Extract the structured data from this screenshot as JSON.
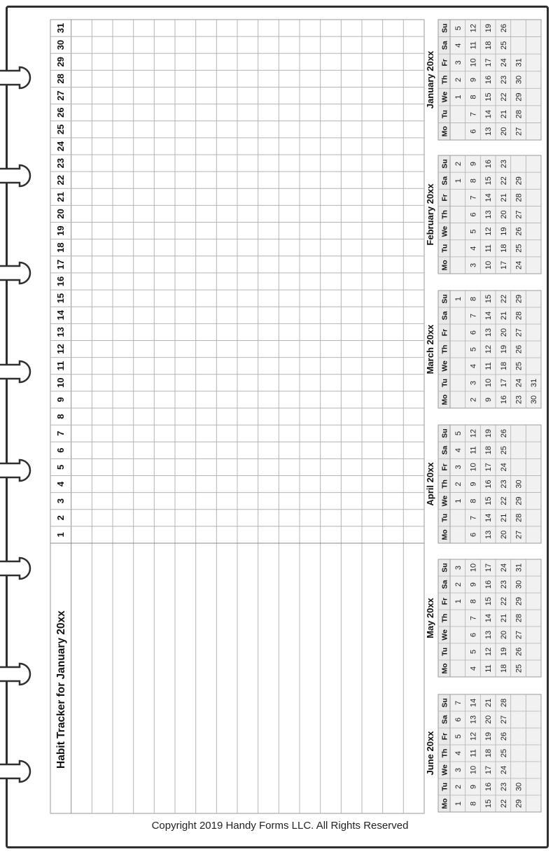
{
  "title": "Habit Tracker for January 20xx",
  "days": [
    "1",
    "2",
    "3",
    "4",
    "5",
    "6",
    "7",
    "8",
    "9",
    "10",
    "11",
    "12",
    "13",
    "14",
    "15",
    "16",
    "17",
    "18",
    "19",
    "20",
    "21",
    "22",
    "23",
    "24",
    "25",
    "26",
    "27",
    "28",
    "29",
    "30",
    "31"
  ],
  "copyright": "Copyright 2019 Handy Forms LLC. All Rights Reserved",
  "weekday_headers": [
    "Mo",
    "Tu",
    "We",
    "Th",
    "Fr",
    "Sa",
    "Su"
  ],
  "months": [
    {
      "title": "January 20xx",
      "weeks": [
        [
          "",
          "",
          "1",
          "2",
          "3",
          "4",
          "5"
        ],
        [
          "6",
          "7",
          "8",
          "9",
          "10",
          "11",
          "12"
        ],
        [
          "13",
          "14",
          "15",
          "16",
          "17",
          "18",
          "19"
        ],
        [
          "20",
          "21",
          "22",
          "23",
          "24",
          "25",
          "26"
        ],
        [
          "27",
          "28",
          "29",
          "30",
          "31",
          "",
          ""
        ]
      ]
    },
    {
      "title": "February 20xx",
      "weeks": [
        [
          "",
          "",
          "",
          "",
          "",
          "1",
          "2"
        ],
        [
          "3",
          "4",
          "5",
          "6",
          "7",
          "8",
          "9"
        ],
        [
          "10",
          "11",
          "12",
          "13",
          "14",
          "15",
          "16"
        ],
        [
          "17",
          "18",
          "19",
          "20",
          "21",
          "22",
          "23"
        ],
        [
          "24",
          "25",
          "26",
          "27",
          "28",
          "29",
          ""
        ]
      ]
    },
    {
      "title": "March 20xx",
      "weeks": [
        [
          "",
          "",
          "",
          "",
          "",
          "",
          "1"
        ],
        [
          "2",
          "3",
          "4",
          "5",
          "6",
          "7",
          "8"
        ],
        [
          "9",
          "10",
          "11",
          "12",
          "13",
          "14",
          "15"
        ],
        [
          "16",
          "17",
          "18",
          "19",
          "20",
          "21",
          "22"
        ],
        [
          "23",
          "24",
          "25",
          "26",
          "27",
          "28",
          "29"
        ],
        [
          "30",
          "31",
          "",
          "",
          "",
          "",
          ""
        ]
      ]
    },
    {
      "title": "April 20xx",
      "weeks": [
        [
          "",
          "",
          "1",
          "2",
          "3",
          "4",
          "5"
        ],
        [
          "6",
          "7",
          "8",
          "9",
          "10",
          "11",
          "12"
        ],
        [
          "13",
          "14",
          "15",
          "16",
          "17",
          "18",
          "19"
        ],
        [
          "20",
          "21",
          "22",
          "23",
          "24",
          "25",
          "26"
        ],
        [
          "27",
          "28",
          "29",
          "30",
          "",
          "",
          ""
        ]
      ]
    },
    {
      "title": "May 20xx",
      "weeks": [
        [
          "",
          "",
          "",
          "",
          "1",
          "2",
          "3"
        ],
        [
          "4",
          "5",
          "6",
          "7",
          "8",
          "9",
          "10"
        ],
        [
          "11",
          "12",
          "13",
          "14",
          "15",
          "16",
          "17"
        ],
        [
          "18",
          "19",
          "20",
          "21",
          "22",
          "23",
          "24"
        ],
        [
          "25",
          "26",
          "27",
          "28",
          "29",
          "30",
          "31"
        ]
      ]
    },
    {
      "title": "June 20xx",
      "weeks": [
        [
          "1",
          "2",
          "3",
          "4",
          "5",
          "6",
          "7"
        ],
        [
          "8",
          "9",
          "10",
          "11",
          "12",
          "13",
          "14"
        ],
        [
          "15",
          "16",
          "17",
          "18",
          "19",
          "20",
          "21"
        ],
        [
          "22",
          "23",
          "24",
          "25",
          "26",
          "27",
          "28"
        ],
        [
          "29",
          "30",
          "",
          "",
          "",
          "",
          ""
        ]
      ]
    }
  ]
}
